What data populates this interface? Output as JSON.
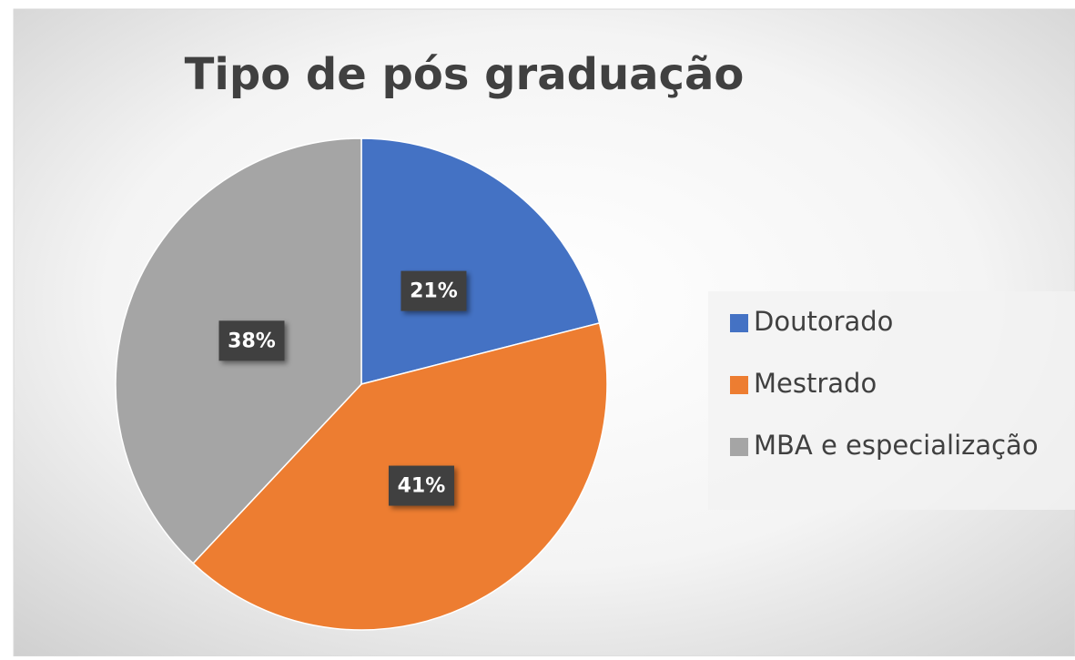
{
  "chart_data": {
    "type": "pie",
    "title": "Tipo de pós graduação",
    "categories": [
      "Doutorado",
      "Mestrado",
      "MBA e especialização"
    ],
    "values": [
      21,
      41,
      38
    ],
    "value_labels": [
      "21%",
      "41%",
      "38%"
    ],
    "colors": [
      "#4472c4",
      "#ed7d31",
      "#a5a5a5"
    ],
    "legend": "right"
  }
}
